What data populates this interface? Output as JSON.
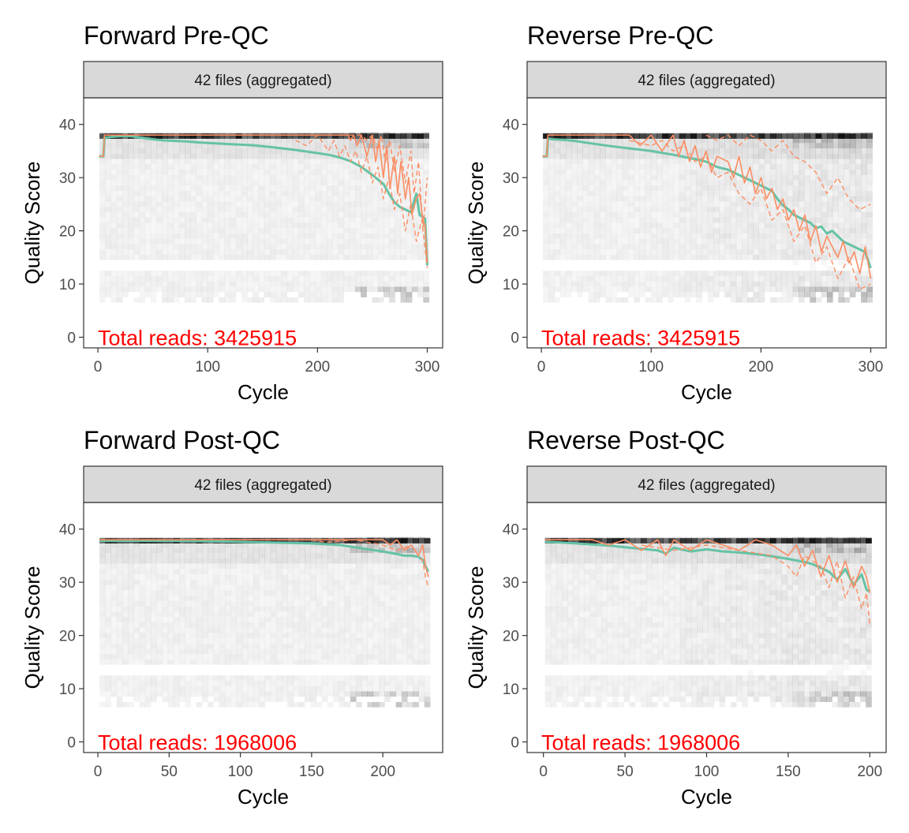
{
  "chart_data": [
    {
      "type": "line",
      "title": "Forward Pre-QC",
      "facet_label": "42 files (aggregated)",
      "xlabel": "Cycle",
      "ylabel": "Quality Score",
      "xlim": [
        -13,
        314
      ],
      "ylim": [
        -2,
        45
      ],
      "x_ticks": [
        0,
        100,
        200,
        300
      ],
      "y_ticks": [
        0,
        10,
        20,
        30,
        40
      ],
      "annotation": "Total reads: 3425915",
      "heatmap": {
        "x_max": 300,
        "top": 38,
        "bottom": 7,
        "density": "low"
      },
      "series": [
        {
          "role": "mean",
          "color": "#66c2a5",
          "dash": "solid",
          "x": [
            1,
            5,
            6,
            10,
            20,
            30,
            40,
            50,
            60,
            80,
            100,
            120,
            140,
            160,
            180,
            200,
            210,
            220,
            230,
            240,
            250,
            260,
            265,
            270,
            275,
            280,
            285,
            290,
            293,
            295,
            298,
            300
          ],
          "y": [
            34,
            34,
            37.5,
            37.6,
            37.8,
            37.8,
            37.5,
            37.2,
            37,
            36.8,
            36.5,
            36.3,
            36.1,
            35.7,
            35.2,
            34.6,
            34.3,
            33.8,
            33.1,
            32,
            30.5,
            28.8,
            27,
            25.4,
            24.5,
            24,
            23.5,
            27,
            23,
            22.7,
            22.3,
            13.5
          ]
        },
        {
          "role": "median",
          "color": "#fc8d62",
          "dash": "solid",
          "x": [
            1,
            5,
            6,
            200,
            210,
            220,
            228,
            230,
            233,
            236,
            240,
            245,
            250,
            253,
            256,
            260,
            263,
            266,
            270,
            273,
            276,
            280,
            283,
            286,
            290,
            293,
            296,
            298,
            300
          ],
          "y": [
            34,
            34,
            38,
            38,
            38,
            38,
            38,
            37,
            38,
            36,
            38,
            34,
            38,
            33,
            37,
            30,
            36,
            28,
            34,
            27,
            33,
            26,
            30,
            23,
            26,
            27,
            22,
            21,
            14
          ]
        },
        {
          "role": "quartile",
          "color": "#fc8d62",
          "dash": "dashed",
          "x": [
            180,
            190,
            200,
            210,
            215,
            220,
            225,
            230,
            235,
            240,
            245,
            250,
            255,
            260,
            265,
            270,
            275,
            280,
            285,
            290,
            295,
            300
          ],
          "y": [
            37,
            36,
            38,
            35,
            37,
            34,
            36,
            33,
            35,
            31,
            34,
            29,
            32,
            26,
            30,
            24,
            27,
            20,
            25,
            18,
            22,
            13
          ]
        },
        {
          "role": "quartile",
          "color": "#fc8d62",
          "dash": "dashed",
          "x": [
            200,
            220,
            240,
            245,
            250,
            255,
            258,
            262,
            266,
            270,
            275,
            280,
            285,
            288,
            292,
            296,
            300
          ],
          "y": [
            38,
            38,
            38,
            37,
            38,
            35,
            38,
            33,
            37,
            31,
            36,
            29,
            35,
            27,
            33,
            20,
            30
          ]
        }
      ]
    },
    {
      "type": "line",
      "title": "Reverse Pre-QC",
      "facet_label": "42 files (aggregated)",
      "xlabel": "Cycle",
      "ylabel": "Quality Score",
      "xlim": [
        -13,
        314
      ],
      "ylim": [
        -2,
        45
      ],
      "x_ticks": [
        0,
        100,
        200,
        300
      ],
      "y_ticks": [
        0,
        10,
        20,
        30,
        40
      ],
      "annotation": "Total reads: 3425915",
      "heatmap": {
        "x_max": 300,
        "top": 38,
        "bottom": 7,
        "density": "high"
      },
      "series": [
        {
          "role": "mean",
          "color": "#66c2a5",
          "dash": "solid",
          "x": [
            1,
            5,
            6,
            10,
            20,
            30,
            40,
            50,
            60,
            80,
            100,
            120,
            140,
            150,
            160,
            170,
            180,
            190,
            195,
            200,
            205,
            210,
            215,
            220,
            225,
            230,
            235,
            240,
            245,
            250,
            255,
            260,
            265,
            270,
            275,
            280,
            285,
            290,
            295,
            300
          ],
          "y": [
            34,
            34,
            37.3,
            37.2,
            37.1,
            36.9,
            36.6,
            36.3,
            36,
            35.5,
            35,
            34.3,
            33.5,
            33,
            32,
            31.5,
            30.5,
            29.5,
            29,
            28.5,
            28,
            27.5,
            26,
            24.8,
            24,
            23,
            22.5,
            22,
            21.5,
            20.5,
            20.8,
            19.5,
            20,
            19,
            18,
            17.5,
            17,
            16.5,
            16,
            13
          ]
        },
        {
          "role": "median",
          "color": "#fc8d62",
          "dash": "solid",
          "x": [
            1,
            5,
            6,
            60,
            80,
            90,
            100,
            110,
            120,
            125,
            130,
            135,
            140,
            145,
            150,
            155,
            160,
            170,
            175,
            180,
            185,
            190,
            195,
            200,
            205,
            210,
            215,
            220,
            225,
            230,
            235,
            240,
            245,
            250,
            255,
            260,
            265,
            270,
            275,
            280,
            285,
            290,
            295,
            300
          ],
          "y": [
            34,
            34,
            38,
            38,
            38,
            36,
            38,
            35,
            38,
            34,
            37,
            33,
            36,
            32,
            35,
            31,
            34,
            33,
            30,
            34,
            29,
            32,
            27,
            30,
            26,
            28,
            24,
            26,
            22,
            24,
            20,
            23,
            18,
            21,
            16,
            19,
            17,
            15,
            18,
            14,
            16,
            12,
            17,
            11
          ]
        },
        {
          "role": "quartile",
          "color": "#fc8d62",
          "dash": "dashed",
          "x": [
            80,
            100,
            110,
            120,
            130,
            140,
            150,
            160,
            170,
            180,
            190,
            200,
            210,
            220,
            230,
            240,
            250,
            260,
            270,
            280,
            290,
            300
          ],
          "y": [
            37,
            36,
            37,
            35,
            36,
            33,
            34,
            30,
            31,
            27,
            25,
            28,
            22,
            24,
            18,
            21,
            14,
            17,
            11,
            15,
            9,
            10
          ]
        },
        {
          "role": "quartile",
          "color": "#fc8d62",
          "dash": "dashed",
          "x": [
            150,
            160,
            170,
            180,
            190,
            200,
            210,
            220,
            230,
            240,
            250,
            260,
            270,
            280,
            290,
            300
          ],
          "y": [
            38,
            37,
            38,
            36,
            38,
            37,
            35,
            37,
            34,
            33,
            31,
            27,
            30,
            26,
            24,
            25
          ]
        }
      ]
    },
    {
      "type": "line",
      "title": "Forward Post-QC",
      "facet_label": "42 files (aggregated)",
      "xlabel": "Cycle",
      "ylabel": "Quality Score",
      "xlim": [
        -10,
        242
      ],
      "ylim": [
        -2,
        45
      ],
      "x_ticks": [
        0,
        50,
        100,
        150,
        200
      ],
      "y_ticks": [
        0,
        10,
        20,
        30,
        40
      ],
      "annotation": "Total reads: 1968006",
      "heatmap": {
        "x_max": 232,
        "top": 38,
        "bottom": 7,
        "density": "low"
      },
      "series": [
        {
          "role": "mean",
          "color": "#66c2a5",
          "dash": "solid",
          "x": [
            1,
            20,
            50,
            80,
            100,
            120,
            150,
            170,
            180,
            190,
            200,
            210,
            215,
            220,
            225,
            228,
            230,
            232
          ],
          "y": [
            37.8,
            37.8,
            37.8,
            37.7,
            37.6,
            37.5,
            37.3,
            37,
            36.6,
            36.2,
            35.8,
            35.3,
            35,
            35,
            34.8,
            34.2,
            33,
            32
          ]
        },
        {
          "role": "median",
          "color": "#fc8d62",
          "dash": "solid",
          "x": [
            1,
            190,
            200,
            205,
            210,
            215,
            220,
            225,
            228,
            230,
            232
          ],
          "y": [
            38,
            38,
            38,
            37,
            38,
            36,
            37,
            35,
            37,
            33,
            31
          ]
        },
        {
          "role": "quartile",
          "color": "#fc8d62",
          "dash": "dashed",
          "x": [
            150,
            160,
            180,
            200,
            210,
            220,
            225,
            228,
            230,
            232
          ],
          "y": [
            38,
            37.5,
            38,
            37,
            36,
            37,
            35,
            34,
            31,
            29
          ]
        }
      ]
    },
    {
      "type": "line",
      "title": "Reverse Post-QC",
      "facet_label": "42 files (aggregated)",
      "xlabel": "Cycle",
      "ylabel": "Quality Score",
      "xlim": [
        -10,
        210
      ],
      "ylim": [
        -2,
        45
      ],
      "x_ticks": [
        0,
        50,
        100,
        150,
        200
      ],
      "y_ticks": [
        0,
        10,
        20,
        30,
        40
      ],
      "annotation": "Total reads: 1968006",
      "heatmap": {
        "x_max": 200,
        "top": 38,
        "bottom": 7,
        "density": "high"
      },
      "series": [
        {
          "role": "mean",
          "color": "#66c2a5",
          "dash": "solid",
          "x": [
            1,
            10,
            20,
            30,
            40,
            50,
            60,
            70,
            75,
            80,
            90,
            100,
            110,
            120,
            130,
            140,
            150,
            160,
            165,
            170,
            175,
            180,
            185,
            190,
            195,
            198,
            200
          ],
          "y": [
            37.6,
            37.5,
            37.3,
            37.1,
            36.9,
            36.6,
            36.3,
            36,
            35.4,
            36.5,
            35.8,
            36.2,
            35.8,
            35.6,
            35.3,
            34.9,
            34.4,
            33.8,
            33.4,
            32.7,
            32,
            30.5,
            32.5,
            29.5,
            31.5,
            28.6,
            28.3
          ]
        },
        {
          "role": "median",
          "color": "#fc8d62",
          "dash": "solid",
          "x": [
            1,
            30,
            40,
            50,
            60,
            70,
            75,
            80,
            90,
            100,
            110,
            120,
            130,
            140,
            150,
            155,
            160,
            165,
            170,
            175,
            180,
            185,
            190,
            195,
            198,
            200
          ],
          "y": [
            38,
            38,
            37,
            38,
            36,
            38,
            35,
            38,
            36,
            38,
            37,
            36,
            38,
            37,
            35,
            37,
            33,
            36,
            31,
            35,
            30,
            34,
            29,
            33,
            31,
            28
          ]
        },
        {
          "role": "quartile",
          "color": "#fc8d62",
          "dash": "dashed",
          "x": [
            60,
            80,
            100,
            120,
            140,
            150,
            155,
            160,
            170,
            175,
            180,
            185,
            190,
            195,
            198,
            200
          ],
          "y": [
            37,
            36,
            37,
            36,
            35,
            33,
            31,
            35,
            33,
            29,
            34,
            27,
            31,
            25,
            28,
            22
          ]
        }
      ]
    }
  ]
}
